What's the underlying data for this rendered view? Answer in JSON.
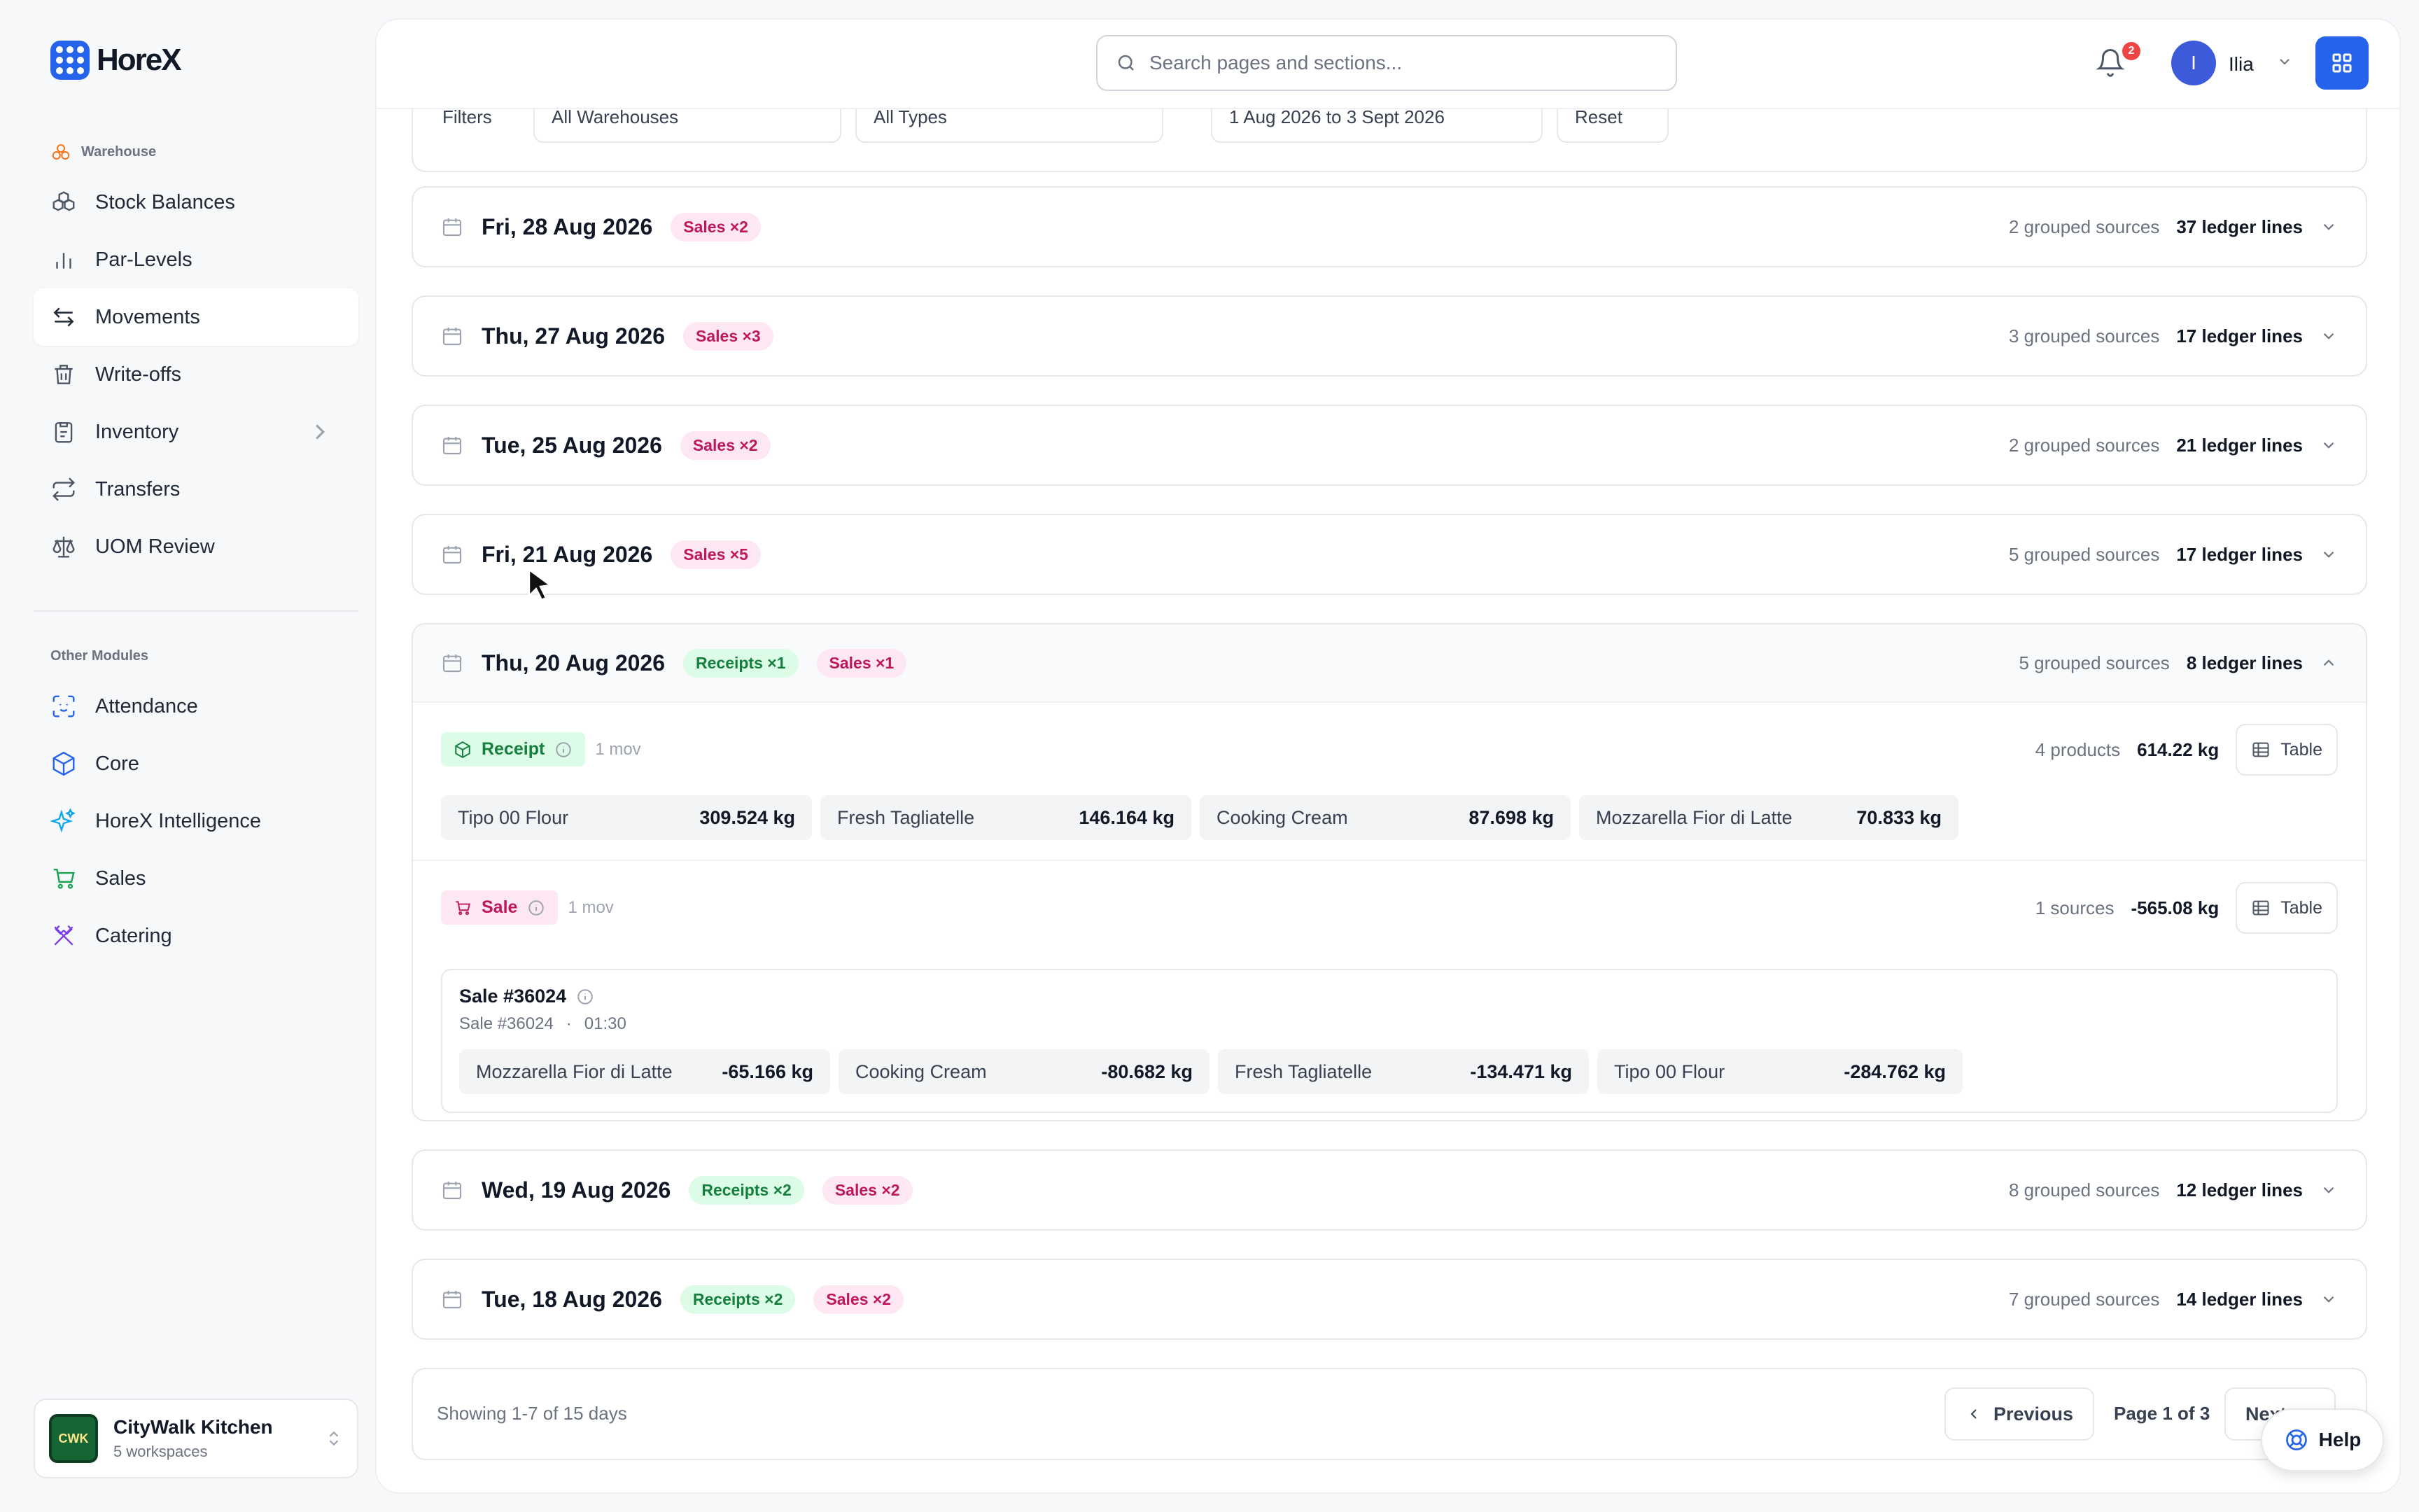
{
  "brand": {
    "name": "HoreX"
  },
  "sidebar": {
    "warehouse_label": "Warehouse",
    "items": [
      {
        "label": "Stock Balances",
        "icon": "boxes-icon"
      },
      {
        "label": "Par-Levels",
        "icon": "bar-chart-icon"
      },
      {
        "label": "Movements",
        "icon": "arrows-left-right-icon",
        "active": true
      },
      {
        "label": "Write-offs",
        "icon": "trash-icon"
      },
      {
        "label": "Inventory",
        "icon": "clipboard-icon"
      },
      {
        "label": "Transfers",
        "icon": "repeat-icon"
      },
      {
        "label": "UOM Review",
        "icon": "scale-icon"
      }
    ],
    "other_label": "Other Modules",
    "other_items": [
      {
        "label": "Attendance",
        "icon": "face-scan-icon"
      },
      {
        "label": "Core",
        "icon": "cube-icon"
      },
      {
        "label": "HoreX Intelligence",
        "icon": "sparkles-icon"
      },
      {
        "label": "Sales",
        "icon": "cart-icon"
      },
      {
        "label": "Catering",
        "icon": "utensils-icon"
      }
    ],
    "workspace": {
      "logo": "CWK",
      "name": "CityWalk Kitchen",
      "sub": "5 workspaces"
    }
  },
  "topbar": {
    "search_placeholder": "Search pages and sections...",
    "notifications": "2",
    "user_initial": "I",
    "user_name": "Ilia"
  },
  "filters": {
    "label": "Filters",
    "warehouse": "All Warehouses",
    "type": "All Types",
    "date_range": "1 Aug 2026 to 3 Sept 2026",
    "reset": "Reset"
  },
  "days": [
    {
      "date": "Fri, 28 Aug 2026",
      "receipts": "",
      "sales": "Sales ×2",
      "sources": "2 grouped sources",
      "lines": "37 ledger lines"
    },
    {
      "date": "Thu, 27 Aug 2026",
      "receipts": "",
      "sales": "Sales ×3",
      "sources": "3 grouped sources",
      "lines": "17 ledger lines"
    },
    {
      "date": "Tue, 25 Aug 2026",
      "receipts": "",
      "sales": "Sales ×2",
      "sources": "2 grouped sources",
      "lines": "21 ledger lines"
    },
    {
      "date": "Fri, 21 Aug 2026",
      "receipts": "",
      "sales": "Sales ×5",
      "sources": "5 grouped sources",
      "lines": "17 ledger lines"
    },
    {
      "date": "Thu, 20 Aug 2026",
      "receipts": "Receipts ×1",
      "sales": "Sales ×1",
      "sources": "5 grouped sources",
      "lines": "8 ledger lines"
    },
    {
      "date": "Wed, 19 Aug 2026",
      "receipts": "Receipts ×2",
      "sales": "Sales ×2",
      "sources": "8 grouped sources",
      "lines": "12 ledger lines"
    },
    {
      "date": "Tue, 18 Aug 2026",
      "receipts": "Receipts ×2",
      "sales": "Sales ×2",
      "sources": "7 grouped sources",
      "lines": "14 ledger lines"
    }
  ],
  "expanded": {
    "receipt": {
      "tag": "Receipt",
      "mov": "1 mov",
      "products": "4 products",
      "total": "614.22 kg",
      "table_label": "Table",
      "items": [
        {
          "name": "Tipo 00 Flour",
          "qty": "309.524 kg"
        },
        {
          "name": "Fresh Tagliatelle",
          "qty": "146.164 kg"
        },
        {
          "name": "Cooking Cream",
          "qty": "87.698 kg"
        },
        {
          "name": "Mozzarella Fior di Latte",
          "qty": "70.833 kg"
        }
      ]
    },
    "sale": {
      "tag": "Sale",
      "mov": "1 mov",
      "sources": "1 sources",
      "total": "-565.08 kg",
      "table_label": "Table",
      "title": "Sale #36024",
      "sub_ref": "Sale #36024",
      "time": "01:30",
      "items": [
        {
          "name": "Mozzarella Fior di Latte",
          "qty": "-65.166 kg"
        },
        {
          "name": "Cooking Cream",
          "qty": "-80.682 kg"
        },
        {
          "name": "Fresh Tagliatelle",
          "qty": "-134.471 kg"
        },
        {
          "name": "Tipo 00 Flour",
          "qty": "-284.762 kg"
        }
      ]
    }
  },
  "pagination": {
    "showing": "Showing 1-7 of 15 days",
    "prev": "Previous",
    "page": "Page 1 of 3",
    "next": "Next"
  },
  "help": {
    "label": "Help"
  }
}
